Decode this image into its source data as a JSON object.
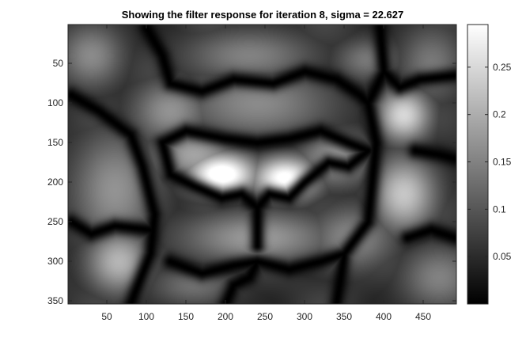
{
  "chart_data": {
    "type": "heatmap",
    "title": "Showing the filter response for iteration 8, sigma = 22.627",
    "xlabel": "",
    "ylabel": "",
    "xlim": [
      1,
      492
    ],
    "ylim": [
      1,
      354
    ],
    "y_reversed": true,
    "x_ticks": [
      50,
      100,
      150,
      200,
      250,
      300,
      350,
      400,
      450
    ],
    "y_ticks": [
      50,
      100,
      150,
      200,
      250,
      300,
      350
    ],
    "x_tick_labels": [
      "50",
      "100",
      "150",
      "200",
      "250",
      "300",
      "350",
      "400",
      "450"
    ],
    "y_tick_labels": [
      "50",
      "100",
      "150",
      "200",
      "250",
      "300",
      "350"
    ],
    "colormap": "gray",
    "colorbar": {
      "range": [
        0.0,
        0.295
      ],
      "ticks": [
        0.05,
        0.1,
        0.15,
        0.2,
        0.25
      ],
      "tick_labels": [
        "0.05",
        "0.1",
        "0.15",
        "0.2",
        "0.25"
      ],
      "placement": "right"
    },
    "blobs": [
      {
        "x": 195,
        "y": 190,
        "sx": 32,
        "sy": 20,
        "value": 0.29
      },
      {
        "x": 275,
        "y": 195,
        "sx": 30,
        "sy": 20,
        "value": 0.27
      },
      {
        "x": 160,
        "y": 165,
        "sx": 40,
        "sy": 25,
        "value": 0.15
      },
      {
        "x": 340,
        "y": 170,
        "sx": 35,
        "sy": 25,
        "value": 0.14
      },
      {
        "x": 240,
        "y": 100,
        "sx": 70,
        "sy": 35,
        "value": 0.12
      },
      {
        "x": 130,
        "y": 110,
        "sx": 35,
        "sy": 30,
        "value": 0.13
      },
      {
        "x": 425,
        "y": 115,
        "sx": 25,
        "sy": 25,
        "value": 0.21
      },
      {
        "x": 425,
        "y": 215,
        "sx": 30,
        "sy": 35,
        "value": 0.19
      },
      {
        "x": 65,
        "y": 300,
        "sx": 30,
        "sy": 30,
        "value": 0.17
      },
      {
        "x": 240,
        "y": 270,
        "sx": 70,
        "sy": 25,
        "value": 0.14
      },
      {
        "x": 360,
        "y": 270,
        "sx": 40,
        "sy": 30,
        "value": 0.12
      },
      {
        "x": 60,
        "y": 210,
        "sx": 40,
        "sy": 55,
        "value": 0.13
      },
      {
        "x": 30,
        "y": 40,
        "sx": 30,
        "sy": 30,
        "value": 0.12
      },
      {
        "x": 230,
        "y": 40,
        "sx": 60,
        "sy": 25,
        "value": 0.11
      },
      {
        "x": 460,
        "y": 50,
        "sx": 30,
        "sy": 35,
        "value": 0.1
      },
      {
        "x": 470,
        "y": 320,
        "sx": 35,
        "sy": 30,
        "value": 0.11
      },
      {
        "x": 160,
        "y": 330,
        "sx": 40,
        "sy": 20,
        "value": 0.09
      },
      {
        "x": 380,
        "y": 45,
        "sx": 30,
        "sy": 20,
        "value": 0.1
      }
    ],
    "dark_ridges": [
      {
        "points": [
          [
            120,
            150
          ],
          [
            150,
            135
          ],
          [
            200,
            145
          ],
          [
            240,
            150
          ],
          [
            280,
            145
          ],
          [
            320,
            135
          ],
          [
            355,
            150
          ],
          [
            380,
            160
          ],
          [
            355,
            180
          ],
          [
            330,
            175
          ],
          [
            300,
            200
          ],
          [
            280,
            220
          ],
          [
            255,
            215
          ],
          [
            240,
            232
          ],
          [
            220,
            215
          ],
          [
            195,
            220
          ],
          [
            160,
            205
          ],
          [
            130,
            190
          ],
          [
            120,
            150
          ]
        ]
      },
      {
        "points": [
          [
            240,
            232
          ],
          [
            240,
            280
          ]
        ]
      },
      {
        "points": [
          [
            5,
            90
          ],
          [
            40,
            110
          ],
          [
            80,
            140
          ],
          [
            95,
            180
          ],
          [
            110,
            240
          ],
          [
            105,
            290
          ],
          [
            85,
            340
          ],
          [
            80,
            354
          ]
        ]
      },
      {
        "points": [
          [
            395,
            5
          ],
          [
            400,
            60
          ],
          [
            420,
            80
          ],
          [
            445,
            70
          ],
          [
            490,
            65
          ]
        ]
      },
      {
        "points": [
          [
            400,
            60
          ],
          [
            380,
            100
          ],
          [
            390,
            150
          ],
          [
            385,
            200
          ],
          [
            380,
            250
          ],
          [
            350,
            290
          ],
          [
            340,
            354
          ]
        ]
      },
      {
        "points": [
          [
            100,
            5
          ],
          [
            120,
            40
          ],
          [
            130,
            75
          ],
          [
            170,
            85
          ],
          [
            210,
            70
          ],
          [
            260,
            75
          ],
          [
            300,
            60
          ],
          [
            340,
            70
          ],
          [
            370,
            90
          ],
          [
            380,
            100
          ]
        ]
      },
      {
        "points": [
          [
            130,
            300
          ],
          [
            170,
            315
          ],
          [
            210,
            305
          ],
          [
            240,
            300
          ],
          [
            280,
            310
          ],
          [
            320,
            300
          ],
          [
            350,
            290
          ]
        ]
      },
      {
        "points": [
          [
            440,
            160
          ],
          [
            470,
            165
          ],
          [
            490,
            170
          ]
        ]
      },
      {
        "points": [
          [
            430,
            270
          ],
          [
            460,
            260
          ],
          [
            490,
            270
          ]
        ]
      },
      {
        "points": [
          [
            5,
            250
          ],
          [
            30,
            265
          ],
          [
            60,
            255
          ],
          [
            105,
            260
          ]
        ]
      },
      {
        "points": [
          [
            200,
            354
          ],
          [
            210,
            330
          ],
          [
            230,
            320
          ],
          [
            240,
            300
          ]
        ]
      }
    ]
  }
}
